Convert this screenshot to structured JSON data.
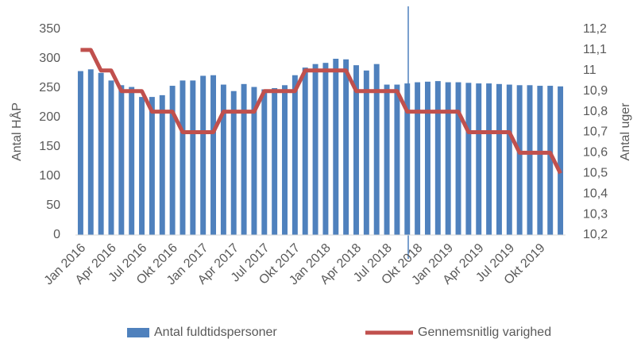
{
  "chart_data": {
    "type": "bar",
    "categories": [
      "Jan 2016",
      null,
      null,
      "Apr 2016",
      null,
      null,
      "Jul 2016",
      null,
      null,
      "Okt 2016",
      null,
      null,
      "Jan 2017",
      null,
      null,
      "Apr 2017",
      null,
      null,
      "Jul 2017",
      null,
      null,
      "Okt 2017",
      null,
      null,
      "Jan 2018",
      null,
      null,
      "Apr 2018",
      null,
      null,
      "Jul 2018",
      null,
      null,
      "Okt 2018",
      null,
      null,
      "Jan 2019",
      null,
      null,
      "Apr 2019",
      null,
      null,
      "Jul 2019",
      null,
      null,
      "Okt 2019",
      null,
      null
    ],
    "y_label": "Antal HÅP",
    "y2_label": "Antal uger",
    "series": [
      {
        "name": "Antal fuldtidspersoner",
        "type": "bar",
        "color": "#4f81bd",
        "values": [
          279,
          282,
          276,
          263,
          255,
          252,
          235,
          235,
          238,
          254,
          263,
          263,
          271,
          272,
          256,
          245,
          257,
          252,
          248,
          250,
          255,
          272,
          285,
          291,
          293,
          300,
          299,
          289,
          280,
          291,
          256,
          256,
          258,
          260,
          261,
          262,
          260,
          260,
          259,
          258,
          258,
          257,
          256,
          255,
          255,
          254,
          254,
          253
        ]
      },
      {
        "name": "Gennemsnitlig varighed",
        "type": "line",
        "axis": "y2",
        "color": "#c0504d",
        "values": [
          11.1,
          11.1,
          11.0,
          11.0,
          10.9,
          10.9,
          10.9,
          10.8,
          10.8,
          10.8,
          10.7,
          10.7,
          10.7,
          10.7,
          10.8,
          10.8,
          10.8,
          10.8,
          10.9,
          10.9,
          10.9,
          10.9,
          11.0,
          11.0,
          11.0,
          11.0,
          11.0,
          10.9,
          10.9,
          10.9,
          10.9,
          10.9,
          10.8,
          10.8,
          10.8,
          10.8,
          10.8,
          10.8,
          10.7,
          10.7,
          10.7,
          10.7,
          10.7,
          10.6,
          10.6,
          10.6,
          10.6,
          10.5
        ]
      }
    ],
    "ylim": [
      0,
      350
    ],
    "yticks": [
      0,
      50,
      100,
      150,
      200,
      250,
      300,
      350
    ],
    "y2lim": [
      10.2,
      11.2
    ],
    "y2ticks": [
      {
        "value": 10.2,
        "label": "10,2"
      },
      {
        "value": 10.3,
        "label": "10,3"
      },
      {
        "value": 10.4,
        "label": "10,4"
      },
      {
        "value": 10.5,
        "label": "10,5"
      },
      {
        "value": 10.6,
        "label": "10,6"
      },
      {
        "value": 10.7,
        "label": "10,7"
      },
      {
        "value": 10.8,
        "label": "10,8"
      },
      {
        "value": 10.9,
        "label": "10,9"
      },
      11,
      {
        "value": 11.1,
        "label": "11,1"
      },
      {
        "value": 11.2,
        "label": "11,2"
      }
    ],
    "legend": "bottom"
  }
}
